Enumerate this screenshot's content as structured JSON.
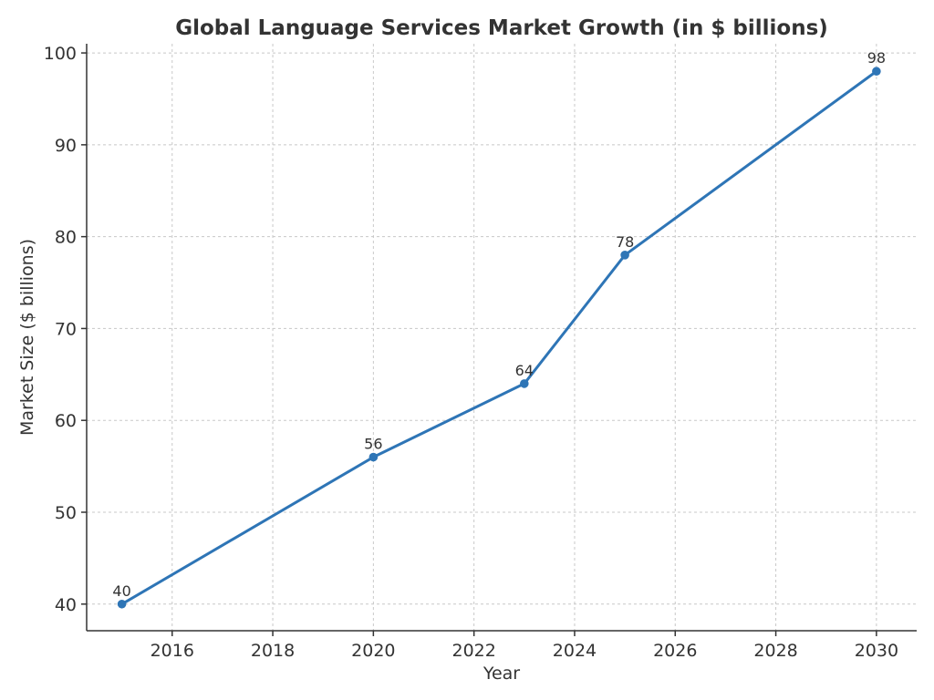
{
  "chart_data": {
    "type": "line",
    "title": "Global Language Services Market Growth (in $ billions)",
    "xlabel": "Year",
    "ylabel": "Market Size ($ billions)",
    "xlim": [
      2014.3,
      2030.8
    ],
    "ylim": [
      37.1,
      101
    ],
    "x_ticks": [
      2016,
      2018,
      2020,
      2022,
      2024,
      2026,
      2028,
      2030
    ],
    "y_ticks": [
      40,
      50,
      60,
      70,
      80,
      90,
      100
    ],
    "grid": true,
    "series": [
      {
        "x": [
          2015,
          2020,
          2023,
          2025,
          2030
        ],
        "values": [
          40,
          56,
          64,
          78,
          98
        ],
        "data_labels": [
          "40",
          "56",
          "64",
          "78",
          "98"
        ],
        "color": "#2e75b6"
      }
    ]
  }
}
